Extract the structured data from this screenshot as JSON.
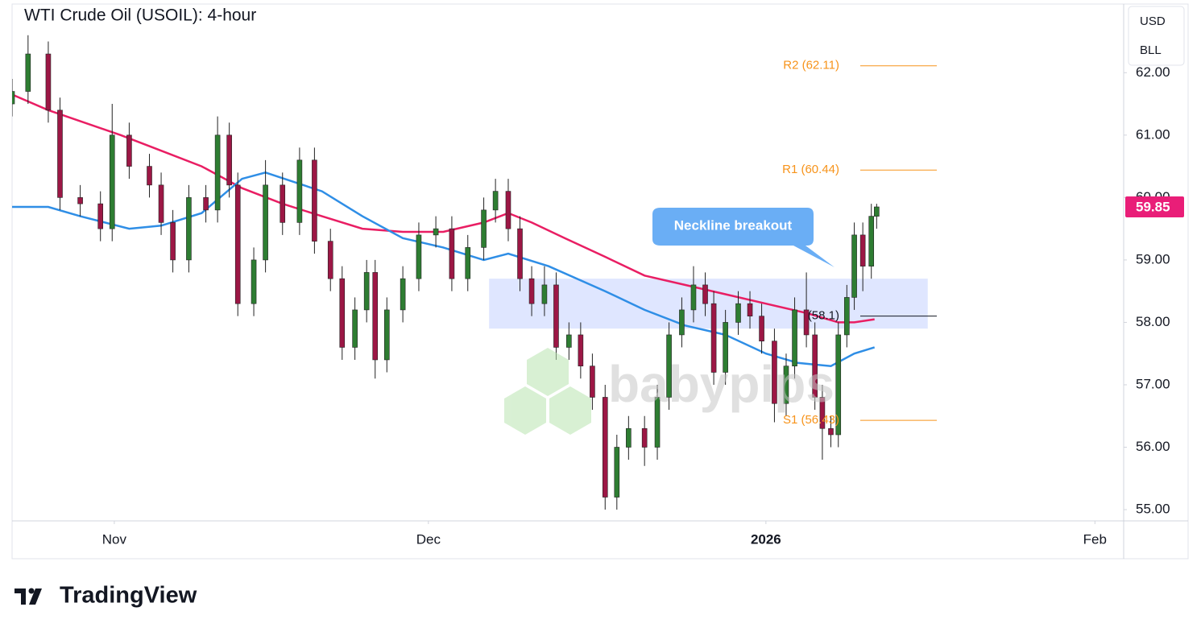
{
  "chart_data": {
    "type": "candlestick",
    "title": "WTI Crude Oil (USOIL): 4-hour",
    "x": [
      21.4,
      22.9,
      24.8,
      25.9,
      27.8,
      29.7,
      30.8,
      32.4,
      34.3,
      35.4,
      36.5,
      38.0,
      39.6,
      40.7,
      41.8,
      42.6,
      44.1,
      45.2,
      46.8,
      48.4,
      49.8,
      51.3,
      52.4,
      53.6,
      54.7,
      55.5,
      56.6,
      58.1,
      59.6,
      61.2,
      62.7,
      64.2,
      65.7,
      66.8,
      68.0,
      69.1,
      70.2,
      71.4,
      72.5,
      73.7,
      74.8,
      75.9,
      77.1,
      78.2,
      79.3,
      80.8,
      82.0,
      83.1,
      84.3,
      85.4,
      86.5,
      87.3,
      88.4,
      89.6,
      90.7,
      91.8,
      93.0,
      94.1,
      94.9,
      96.0,
      96.8,
      97.5,
      98.3,
      99.0,
      99.8,
      100.5,
      101.3,
      102.1,
      102.6
    ],
    "open": [
      61.5,
      61.7,
      62.3,
      61.4,
      60.0,
      59.9,
      59.5,
      61.0,
      60.5,
      60.2,
      59.6,
      59.0,
      60.0,
      59.8,
      61.0,
      60.2,
      58.3,
      59.0,
      60.2,
      59.6,
      60.6,
      59.3,
      58.7,
      57.6,
      58.2,
      58.8,
      57.4,
      58.2,
      58.7,
      59.4,
      59.5,
      58.7,
      59.2,
      59.8,
      60.1,
      59.5,
      58.7,
      58.3,
      58.6,
      57.6,
      57.8,
      57.3,
      56.8,
      55.2,
      56.0,
      56.3,
      56.0,
      56.8,
      57.8,
      58.2,
      58.6,
      58.3,
      57.2,
      58.0,
      58.3,
      58.1,
      57.7,
      56.7,
      57.3,
      58.2,
      57.8,
      56.8,
      56.3,
      56.2,
      57.8,
      58.4,
      59.4,
      58.9,
      59.7
    ],
    "high": [
      61.9,
      62.6,
      62.5,
      61.6,
      60.2,
      60.1,
      61.5,
      61.2,
      60.7,
      60.4,
      59.8,
      60.2,
      60.2,
      61.3,
      61.2,
      60.4,
      59.2,
      60.6,
      60.4,
      60.8,
      60.8,
      59.5,
      58.9,
      58.4,
      59.0,
      59.0,
      58.4,
      58.9,
      59.6,
      59.7,
      59.7,
      59.4,
      60.0,
      60.3,
      60.3,
      59.7,
      58.9,
      58.9,
      58.8,
      58.0,
      58.0,
      57.5,
      57.0,
      56.2,
      56.5,
      56.5,
      57.0,
      58.0,
      58.4,
      58.9,
      58.8,
      58.5,
      58.2,
      58.5,
      58.5,
      58.3,
      57.9,
      57.5,
      58.4,
      58.8,
      58.0,
      57.0,
      56.5,
      58.0,
      58.6,
      59.6,
      59.6,
      59.9,
      59.9
    ],
    "low": [
      61.3,
      61.5,
      61.2,
      59.8,
      59.7,
      59.3,
      59.3,
      60.3,
      60.0,
      59.4,
      58.8,
      58.8,
      59.6,
      59.6,
      60.0,
      58.1,
      58.1,
      58.8,
      59.4,
      59.4,
      59.1,
      58.5,
      57.4,
      57.4,
      58.0,
      57.1,
      57.2,
      58.0,
      58.5,
      59.2,
      58.5,
      58.5,
      59.0,
      59.6,
      59.3,
      58.5,
      58.1,
      58.1,
      57.4,
      57.4,
      57.1,
      56.6,
      55.0,
      55.0,
      55.8,
      55.7,
      55.8,
      56.6,
      57.6,
      58.0,
      58.1,
      57.0,
      57.0,
      57.8,
      57.9,
      57.5,
      56.4,
      56.5,
      57.1,
      57.6,
      56.6,
      55.8,
      56.0,
      56.0,
      57.6,
      58.2,
      58.5,
      58.7,
      59.5
    ],
    "close": [
      61.7,
      62.3,
      61.4,
      60.0,
      59.9,
      59.5,
      61.0,
      60.5,
      60.2,
      59.6,
      59.0,
      60.0,
      59.8,
      61.0,
      60.2,
      58.3,
      59.0,
      60.2,
      59.6,
      60.6,
      59.3,
      58.7,
      57.6,
      58.2,
      58.8,
      57.4,
      58.2,
      58.7,
      59.4,
      59.5,
      58.7,
      59.2,
      59.8,
      60.1,
      59.5,
      58.7,
      58.3,
      58.6,
      57.6,
      57.8,
      57.3,
      56.8,
      55.2,
      56.0,
      56.3,
      56.0,
      56.8,
      57.8,
      58.2,
      58.6,
      58.3,
      57.2,
      58.0,
      58.3,
      58.1,
      57.7,
      56.7,
      57.3,
      58.2,
      57.8,
      56.8,
      56.3,
      56.2,
      57.8,
      58.4,
      59.4,
      58.9,
      59.7,
      59.85
    ],
    "up_color": "#2e7d32",
    "down_color": "#9c1745",
    "overlays": [
      {
        "color": "#e91e63",
        "x": [
          21.4,
          24.8,
          31.6,
          35.4,
          39.2,
          43.0,
          46.8,
          50.5,
          54.3,
          58.1,
          61.9,
          65.7,
          68.0,
          70.2,
          73.3,
          77.1,
          80.8,
          84.6,
          88.4,
          92.2,
          96.0,
          99.0,
          100.5,
          102.4
        ],
        "values": [
          61.65,
          61.4,
          61.0,
          60.75,
          60.5,
          60.15,
          59.9,
          59.7,
          59.5,
          59.45,
          59.45,
          59.6,
          59.75,
          59.6,
          59.35,
          59.05,
          58.75,
          58.6,
          58.45,
          58.3,
          58.15,
          58.0,
          58.0,
          58.05
        ]
      },
      {
        "color": "#2f8ee6",
        "x": [
          21.4,
          24.8,
          27.8,
          32.4,
          35.4,
          39.2,
          43.0,
          45.2,
          50.5,
          54.3,
          58.1,
          61.9,
          65.7,
          68.0,
          71.8,
          77.1,
          80.8,
          84.6,
          88.4,
          92.2,
          95.2,
          98.3,
          100.5,
          102.4
        ],
        "values": [
          59.85,
          59.85,
          59.7,
          59.5,
          59.55,
          59.75,
          60.3,
          60.4,
          60.1,
          59.7,
          59.35,
          59.2,
          59.0,
          59.1,
          58.9,
          58.5,
          58.2,
          57.95,
          57.8,
          57.5,
          57.35,
          57.3,
          57.5,
          57.6
        ]
      }
    ],
    "levels": [
      {
        "label": "R2 (62.11)",
        "value": 62.11
      },
      {
        "label": "R1 (60.44)",
        "value": 60.44
      },
      {
        "label": "(58.1)",
        "value": 58.1
      },
      {
        "label": "S1 (56.43)",
        "value": 56.43
      }
    ],
    "zone": {
      "x": [
        66.2,
        107.4
      ],
      "y": [
        57.9,
        58.7
      ]
    },
    "annotation": "Neckline breakout",
    "watermark": "babypips",
    "xlim": [
      21.4,
      125.8
    ],
    "xticks": [
      {
        "value": 31,
        "label": "Nov"
      },
      {
        "value": 60.5,
        "label": "Dec"
      },
      {
        "value": 92.2,
        "label": "2026"
      },
      {
        "value": 123.1,
        "label": "Feb"
      }
    ],
    "ylim": [
      54.82,
      63.1
    ],
    "yticks": [
      {
        "value": 55,
        "label": "55.00"
      },
      {
        "value": 56,
        "label": "56.00"
      },
      {
        "value": 57,
        "label": "57.00"
      },
      {
        "value": 58,
        "label": "58.00"
      },
      {
        "value": 59,
        "label": "59.00"
      },
      {
        "value": 60,
        "label": "60.00"
      },
      {
        "value": 61,
        "label": "61.00"
      },
      {
        "value": 62,
        "label": "62.00"
      }
    ],
    "currency_buttons": [
      "USD",
      "BLL"
    ],
    "branding": "TradingView"
  }
}
